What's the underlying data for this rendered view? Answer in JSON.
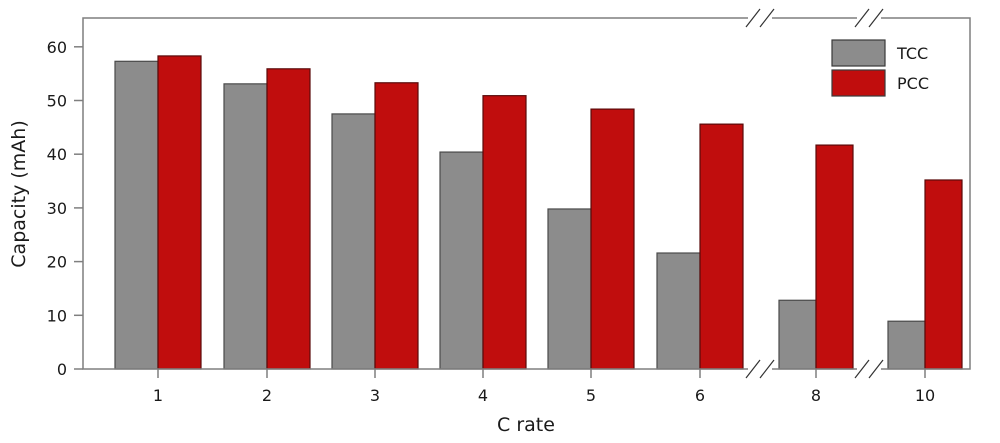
{
  "chart_data": {
    "type": "bar",
    "title": "",
    "xlabel": "C rate",
    "ylabel": "Capacity (mAh)",
    "ylim": [
      0,
      65
    ],
    "yticks": [
      0,
      10,
      20,
      30,
      40,
      50,
      60
    ],
    "categories": [
      "1",
      "2",
      "3",
      "4",
      "5",
      "6",
      "8",
      "10"
    ],
    "axis_breaks": [
      {
        "between": [
          "6",
          "8"
        ],
        "symbol": "//"
      },
      {
        "between": [
          "8",
          "10"
        ],
        "symbol": "//"
      }
    ],
    "legend_position": "upper right",
    "grid": false,
    "series": [
      {
        "name": "TCC",
        "color": "#8c8c8c",
        "values": [
          57.3,
          53.1,
          47.5,
          40.4,
          29.8,
          21.6,
          12.8,
          8.9
        ]
      },
      {
        "name": "PCC",
        "color": "#c00d0d",
        "values": [
          58.3,
          55.9,
          53.3,
          50.9,
          48.4,
          45.6,
          41.7,
          35.2
        ]
      }
    ]
  },
  "legend": {
    "items": [
      {
        "label": "TCC",
        "color": "#8c8c8c"
      },
      {
        "label": "PCC",
        "color": "#c00d0d"
      }
    ]
  }
}
